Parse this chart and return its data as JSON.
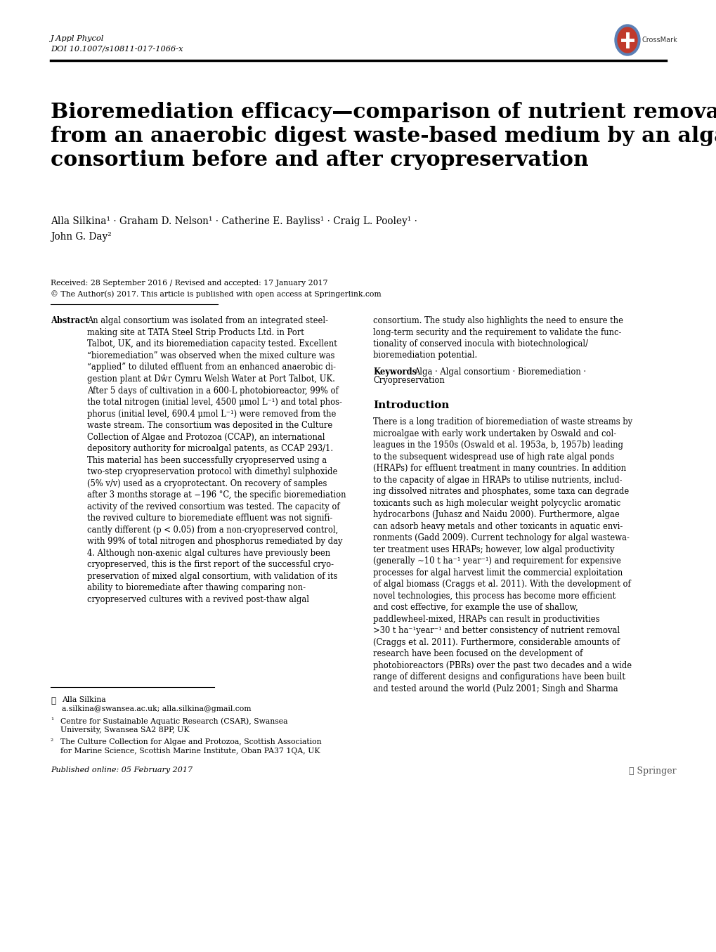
{
  "background_color": "#ffffff",
  "journal_line1": "J Appl Phycol",
  "journal_line2": "DOI 10.1007/s10811-017-1066-x",
  "title": "Bioremediation efficacy—comparison of nutrient removal\nfrom an anaerobic digest waste-based medium by an algal\nconsortium before and after cryopreservation",
  "authors_line1": "Alla Silkina¹ · Graham D. Nelson¹ · Catherine E. Bayliss¹ · Craig L. Pooley¹ ·",
  "authors_line2": "John G. Day²",
  "received": "Received: 28 September 2016 / Revised and accepted: 17 January 2017",
  "open_access": "© The Author(s) 2017. This article is published with open access at Springerlink.com",
  "abs_left": "An algal consortium was isolated from an integrated steel-\nmaking site at TATA Steel Strip Products Ltd. in Port\nTalbot, UK, and its bioremediation capacity tested. Excellent\n“bioremediation” was observed when the mixed culture was\n“applied” to diluted effluent from an enhanced anaerobic di-\ngestion plant at Dŵr Cymru Welsh Water at Port Talbot, UK.\nAfter 5 days of cultivation in a 600-L photobioreactor, 99% of\nthe total nitrogen (initial level, 4500 μmol L⁻¹) and total phos-\nphorus (initial level, 690.4 μmol L⁻¹) were removed from the\nwaste stream. The consortium was deposited in the Culture\nCollection of Algae and Protozoa (CCAP), an international\ndepository authority for microalgal patents, as CCAP 293/1.\nThis material has been successfully cryopreserved using a\ntwo-step cryopreservation protocol with dimethyl sulphoxide\n(5% v/v) used as a cryoprotectant. On recovery of samples\nafter 3 months storage at −196 °C, the specific bioremediation\nactivity of the revived consortium was tested. The capacity of\nthe revived culture to bioremediate effluent was not signifi-\ncantly different (p < 0.05) from a non-cryopreserved control,\nwith 99% of total nitrogen and phosphorus remediated by day\n4. Although non-axenic algal cultures have previously been\ncryopreserved, this is the first report of the successful cryo-\npreservation of mixed algal consortium, with validation of its\nability to bioremediate after thawing comparing non-\ncryopreserved cultures with a revived post-thaw algal",
  "abs_right": "consortium. The study also highlights the need to ensure the\nlong-term security and the requirement to validate the func-\ntionality of conserved inocula with biotechnological/\nbioremediation potential.",
  "kw_line1": "Alga · Algal consortium · Bioremediation ·",
  "kw_line2": "Cryopreservation",
  "intro_body": "There is a long tradition of bioremediation of waste streams by\nmicroalgae with early work undertaken by Oswald and col-\nleagues in the 1950s (Oswald et al. 1953a, b, 1957b) leading\nto the subsequent widespread use of high rate algal ponds\n(HRAPs) for effluent treatment in many countries. In addition\nto the capacity of algae in HRAPs to utilise nutrients, includ-\ning dissolved nitrates and phosphates, some taxa can degrade\ntoxicants such as high molecular weight polycyclic aromatic\nhydrocarbons (Juhasz and Naidu 2000). Furthermore, algae\ncan adsorb heavy metals and other toxicants in aquatic envi-\nronments (Gadd 2009). Current technology for algal wastewa-\nter treatment uses HRAPs; however, low algal productivity\n(generally ~10 t ha⁻¹ year⁻¹) and requirement for expensive\nprocesses for algal harvest limit the commercial exploitation\nof algal biomass (Craggs et al. 2011). With the development of\nnovel technologies, this process has become more efficient\nand cost effective, for example the use of shallow,\npaddlewheel-mixed, HRAPs can result in productivities\n>30 t ha⁻¹year⁻¹ and better consistency of nutrient removal\n(Craggs et al. 2011). Furthermore, considerable amounts of\nresearch have been focused on the development of\nphotobioreactors (PBRs) over the past two decades and a wide\nrange of different designs and configurations have been built\nand tested around the world (Pulz 2001; Singh and Sharma",
  "foot_name": "Alla Silkina",
  "foot_email": "a.silkina@swansea.ac.uk; alla.silkina@gmail.com",
  "foot_aff1a": "Centre for Sustainable Aquatic Research (CSAR), Swansea",
  "foot_aff1b": "University, Swansea SA2 8PP, UK",
  "foot_aff2a": "The Culture Collection for Algae and Protozoa, Scottish Association",
  "foot_aff2b": "for Marine Science, Scottish Marine Institute, Oban PA37 1QA, UK",
  "foot_published": "Published online: 05 February 2017",
  "foot_springer": "ℓ Springer"
}
